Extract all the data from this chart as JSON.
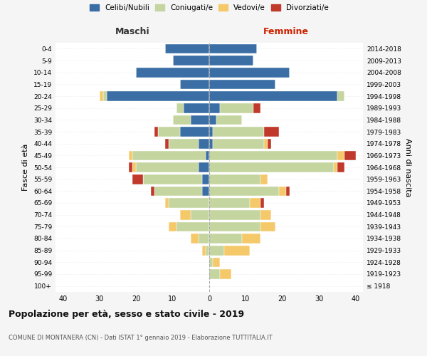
{
  "age_groups": [
    "100+",
    "95-99",
    "90-94",
    "85-89",
    "80-84",
    "75-79",
    "70-74",
    "65-69",
    "60-64",
    "55-59",
    "50-54",
    "45-49",
    "40-44",
    "35-39",
    "30-34",
    "25-29",
    "20-24",
    "15-19",
    "10-14",
    "5-9",
    "0-4"
  ],
  "birth_years": [
    "≤ 1918",
    "1919-1923",
    "1924-1928",
    "1929-1933",
    "1934-1938",
    "1939-1943",
    "1944-1948",
    "1949-1953",
    "1954-1958",
    "1959-1963",
    "1964-1968",
    "1969-1973",
    "1974-1978",
    "1979-1983",
    "1984-1988",
    "1989-1993",
    "1994-1998",
    "1999-2003",
    "2004-2008",
    "2009-2013",
    "2014-2018"
  ],
  "colors": {
    "celibi": "#3a6ea5",
    "coniugati": "#c5d5a0",
    "vedovi": "#f5c96a",
    "divorziati": "#c0392b"
  },
  "maschi": {
    "celibi": [
      0,
      0,
      0,
      0,
      0,
      0,
      0,
      0,
      2,
      2,
      3,
      1,
      3,
      8,
      5,
      7,
      28,
      8,
      20,
      10,
      12
    ],
    "coniugati": [
      0,
      0,
      0,
      1,
      3,
      9,
      5,
      11,
      13,
      16,
      17,
      20,
      8,
      6,
      5,
      2,
      1,
      0,
      0,
      0,
      0
    ],
    "vedovi": [
      0,
      0,
      0,
      1,
      2,
      2,
      3,
      1,
      0,
      0,
      1,
      1,
      0,
      0,
      0,
      0,
      1,
      0,
      0,
      0,
      0
    ],
    "divorziati": [
      0,
      0,
      0,
      0,
      0,
      0,
      0,
      0,
      1,
      3,
      1,
      0,
      1,
      1,
      0,
      0,
      0,
      0,
      0,
      0,
      0
    ]
  },
  "femmine": {
    "nubili": [
      0,
      0,
      0,
      0,
      0,
      0,
      0,
      0,
      0,
      0,
      0,
      0,
      1,
      1,
      2,
      3,
      35,
      18,
      22,
      12,
      13
    ],
    "coniugate": [
      0,
      3,
      1,
      4,
      9,
      14,
      14,
      11,
      19,
      14,
      34,
      35,
      14,
      14,
      7,
      9,
      2,
      0,
      0,
      0,
      0
    ],
    "vedove": [
      0,
      3,
      2,
      7,
      5,
      4,
      3,
      3,
      2,
      2,
      1,
      2,
      1,
      0,
      0,
      0,
      0,
      0,
      0,
      0,
      0
    ],
    "divorziate": [
      0,
      0,
      0,
      0,
      0,
      0,
      0,
      1,
      1,
      0,
      2,
      3,
      1,
      4,
      0,
      2,
      0,
      0,
      0,
      0,
      0
    ]
  },
  "xlim": 42,
  "title": "Popolazione per età, sesso e stato civile - 2019",
  "subtitle": "COMUNE DI MONTANERA (CN) - Dati ISTAT 1° gennaio 2019 - Elaborazione TUTTITALIA.IT",
  "xlabel_left": "Maschi",
  "xlabel_right": "Femmine",
  "ylabel_left": "Fasce di età",
  "ylabel_right": "Anni di nascita",
  "legend_labels": [
    "Celibi/Nubili",
    "Coniugati/e",
    "Vedovi/e",
    "Divorziati/e"
  ],
  "bg_color": "#f5f5f5",
  "plot_bg_color": "#ffffff"
}
